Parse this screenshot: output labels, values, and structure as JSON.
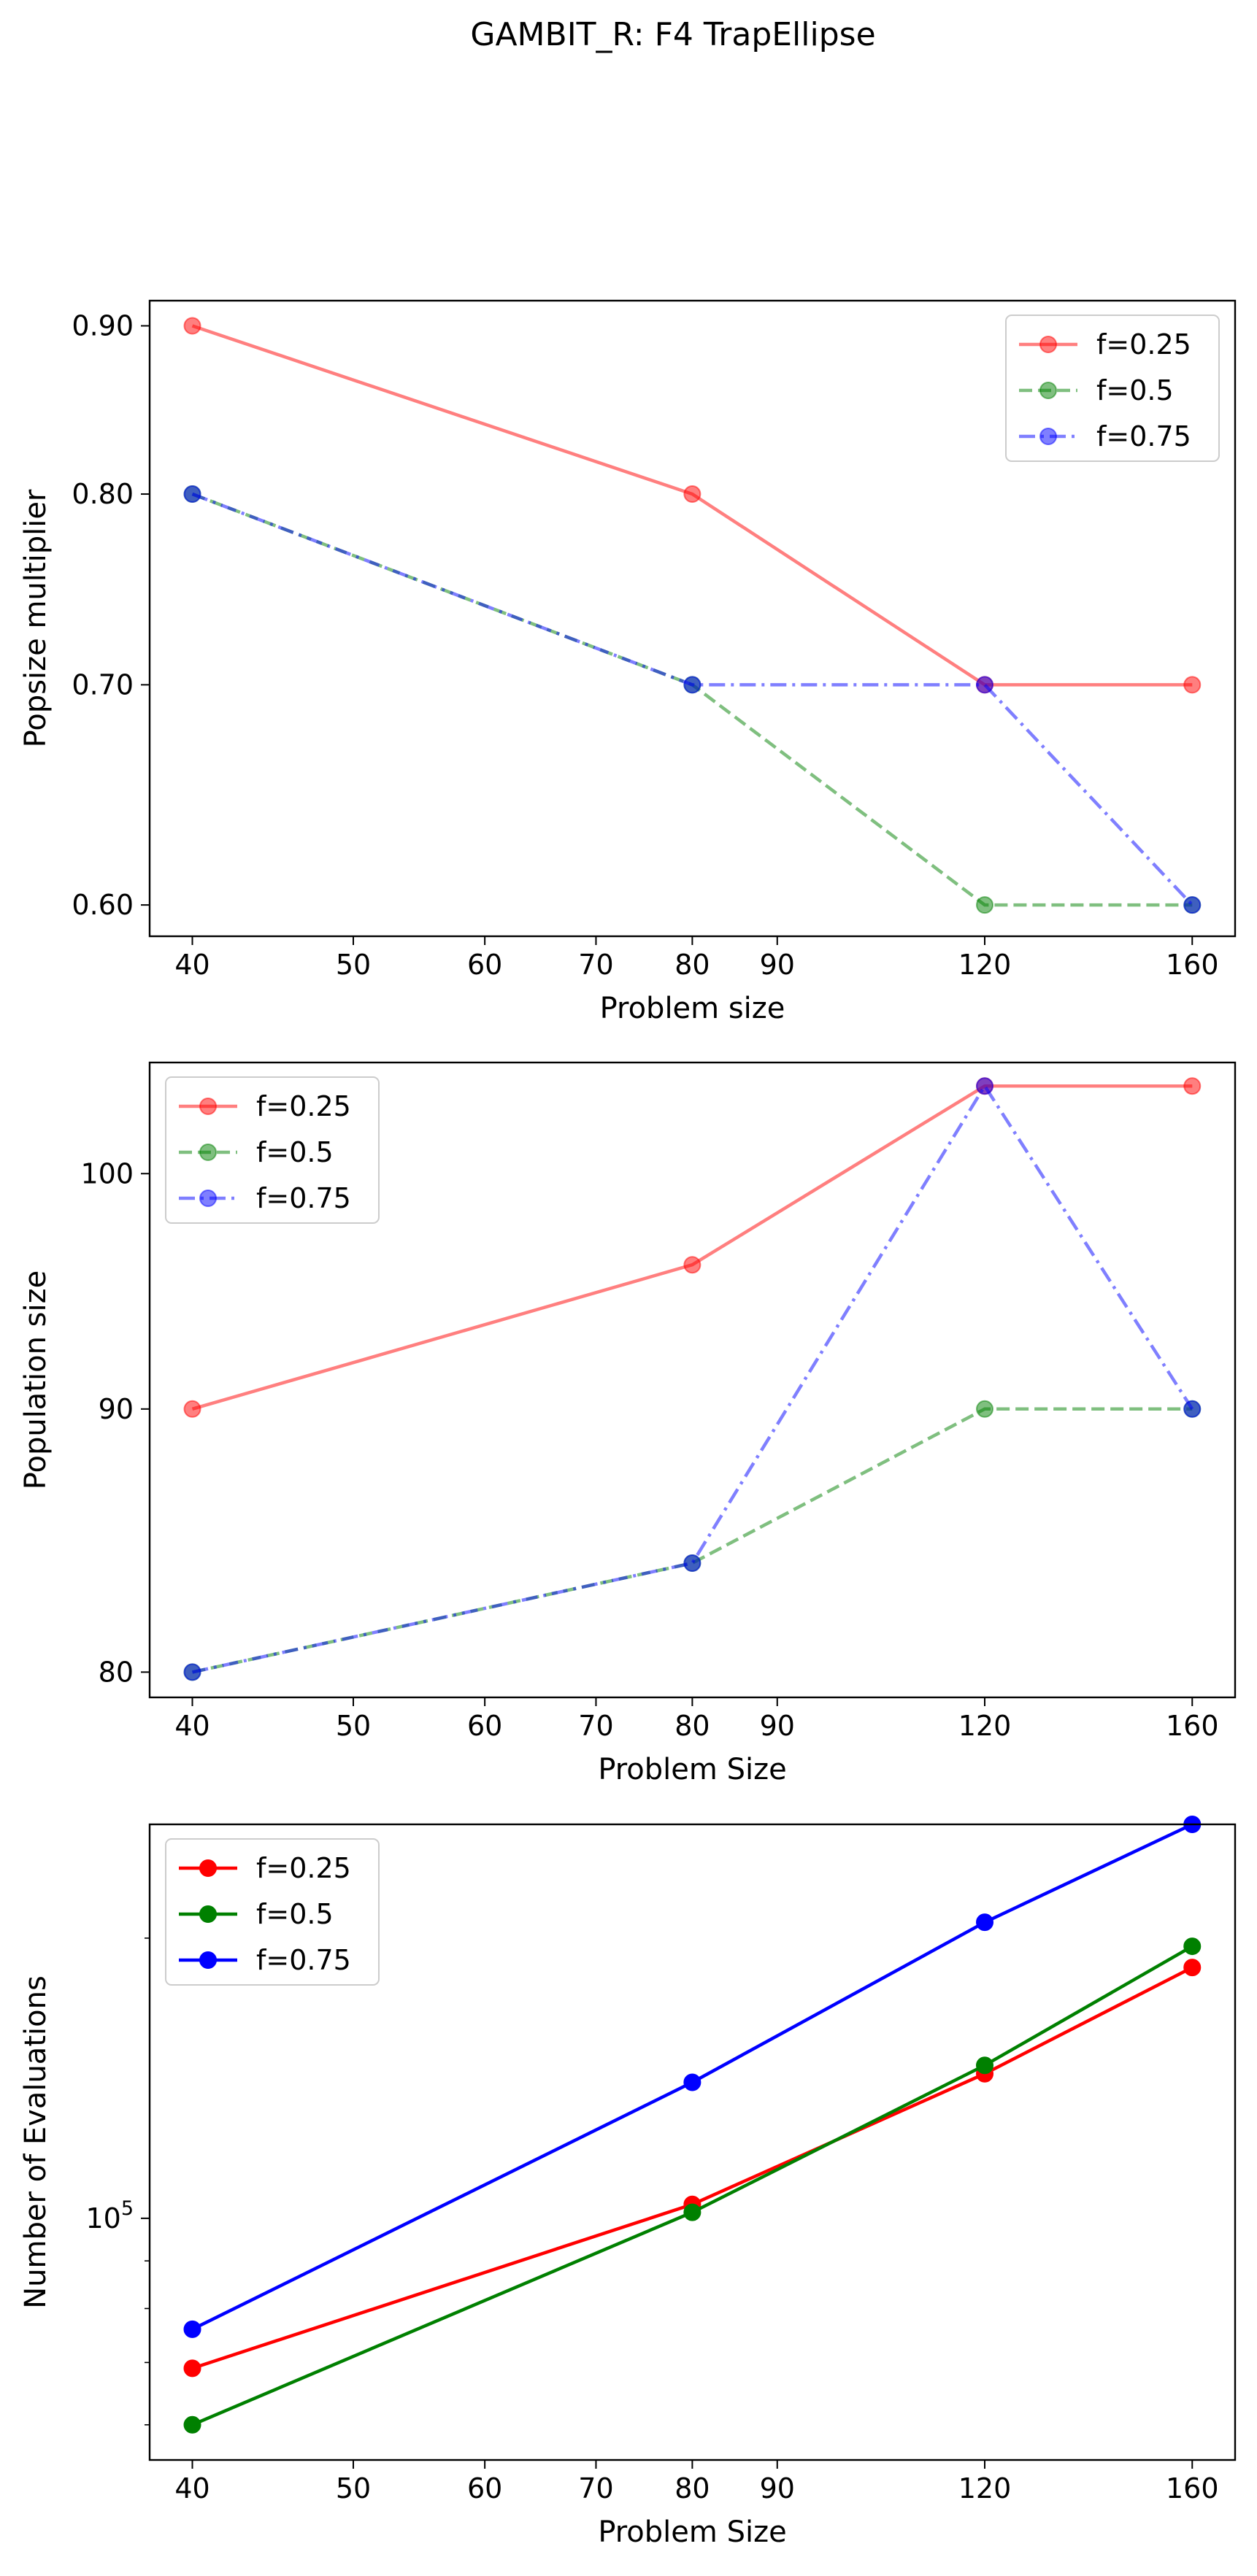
{
  "figure": {
    "title": "GAMBIT_R: F4 TrapEllipse"
  },
  "chart_data": [
    {
      "type": "line",
      "xscale": "log",
      "yscale": "log",
      "x": [
        40,
        80,
        120,
        160
      ],
      "xticks": [
        40,
        50,
        60,
        70,
        80,
        90,
        120,
        160
      ],
      "xlim": [
        37.7,
        169.8
      ],
      "yticks": [
        0.6,
        0.7,
        0.8,
        0.9
      ],
      "ytick_labels": [
        "0.60",
        "0.70",
        "0.80",
        "0.90"
      ],
      "ylim": [
        0.587,
        0.916
      ],
      "xlabel": "Problem size",
      "ylabel": "Popsize multiplier",
      "legend": "upper right",
      "series": [
        {
          "name": "f=0.25",
          "values": [
            0.9,
            0.8,
            0.7,
            0.7
          ],
          "color": "#ff0000",
          "style": "solid",
          "alpha": 0.5
        },
        {
          "name": "f=0.5",
          "values": [
            0.8,
            0.7,
            0.6,
            0.6
          ],
          "color": "#008000",
          "style": "dashed",
          "alpha": 0.5
        },
        {
          "name": "f=0.75",
          "values": [
            0.8,
            0.7,
            0.7,
            0.6
          ],
          "color": "#0000ff",
          "style": "dashdot",
          "alpha": 0.5
        }
      ]
    },
    {
      "type": "line",
      "xscale": "log",
      "yscale": "log",
      "x": [
        40,
        80,
        120,
        160
      ],
      "xticks": [
        40,
        50,
        60,
        70,
        80,
        90,
        120,
        160
      ],
      "xlim": [
        37.7,
        169.8
      ],
      "yticks": [
        80,
        90,
        100
      ],
      "ytick_labels": [
        "80",
        "90",
        "100"
      ],
      "ylim": [
        79.1,
        105.1
      ],
      "xlabel": "Problem Size",
      "ylabel": "Population size",
      "legend": "upper left",
      "series": [
        {
          "name": "f=0.25",
          "values": [
            90,
            96,
            104,
            104
          ],
          "color": "#ff0000",
          "style": "solid",
          "alpha": 0.5
        },
        {
          "name": "f=0.5",
          "values": [
            80,
            84,
            90,
            90
          ],
          "color": "#008000",
          "style": "dashed",
          "alpha": 0.5
        },
        {
          "name": "f=0.75",
          "values": [
            80,
            84,
            104,
            90
          ],
          "color": "#0000ff",
          "style": "dashdot",
          "alpha": 0.5
        }
      ]
    },
    {
      "type": "line",
      "xscale": "log",
      "yscale": "log",
      "x": [
        40,
        80,
        120,
        160
      ],
      "xticks": [
        40,
        50,
        60,
        70,
        80,
        90,
        120,
        160
      ],
      "xlim": [
        37.7,
        169.8
      ],
      "ylim": [
        55000,
        265000
      ],
      "major_ytick": 100000,
      "xlabel": "Problem Size",
      "ylabel": "Number of Evaluations",
      "legend": "upper left",
      "series": [
        {
          "name": "f=0.25",
          "values": [
            69000,
            103500,
            143000,
            186000
          ],
          "color": "#ff0000",
          "style": "solid",
          "alpha": 1.0
        },
        {
          "name": "f=0.5",
          "values": [
            60000,
            101500,
            146000,
            196000
          ],
          "color": "#008000",
          "style": "solid",
          "alpha": 1.0
        },
        {
          "name": "f=0.75",
          "values": [
            76000,
            140000,
            208000,
            265000
          ],
          "color": "#0000ff",
          "style": "solid",
          "alpha": 1.0
        }
      ]
    }
  ]
}
